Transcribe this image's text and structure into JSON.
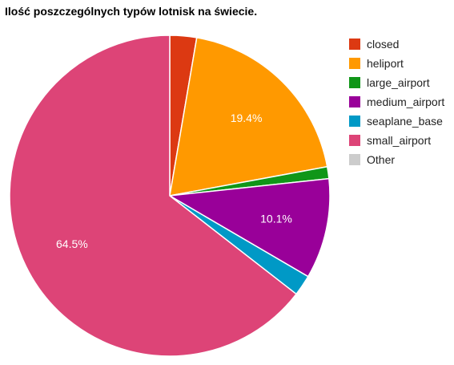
{
  "chart_data": {
    "type": "pie",
    "title": "Ilość poszczególnych typów lotnisk na świecie.",
    "legend_position": "right",
    "start_angle_deg": 0,
    "direction": "clockwise",
    "slices": [
      {
        "name": "closed",
        "value": 2.7,
        "color": "#dc3912",
        "label": ""
      },
      {
        "name": "heliport",
        "value": 19.4,
        "color": "#ff9900",
        "label": "19.4%"
      },
      {
        "name": "large_airport",
        "value": 1.2,
        "color": "#109618",
        "label": ""
      },
      {
        "name": "medium_airport",
        "value": 10.1,
        "color": "#990099",
        "label": "10.1%"
      },
      {
        "name": "seaplane_base",
        "value": 2.1,
        "color": "#0099c6",
        "label": ""
      },
      {
        "name": "small_airport",
        "value": 64.5,
        "color": "#dd4477",
        "label": "64.5%"
      },
      {
        "name": "Other",
        "value": 0,
        "color": "#cccccc",
        "label": ""
      }
    ]
  }
}
